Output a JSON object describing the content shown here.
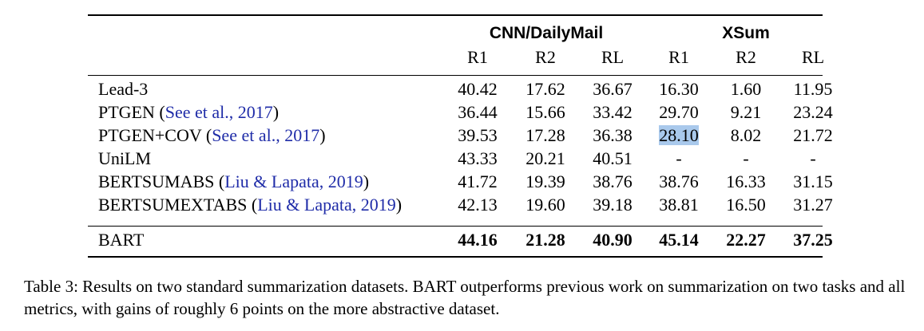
{
  "table": {
    "groups": [
      {
        "label": "CNN/DailyMail"
      },
      {
        "label": "XSum"
      }
    ],
    "metrics": [
      "R1",
      "R2",
      "RL",
      "R1",
      "R2",
      "RL"
    ],
    "rows": [
      {
        "model": "Lead-3",
        "citation": "",
        "suffix": "",
        "values": [
          "40.42",
          "17.62",
          "36.67",
          "16.30",
          "1.60",
          "11.95"
        ]
      },
      {
        "model": "PTGEN (",
        "citation": "See et al., 2017",
        "suffix": ")",
        "values": [
          "36.44",
          "15.66",
          "33.42",
          "29.70",
          "9.21",
          "23.24"
        ]
      },
      {
        "model": "PTGEN+COV (",
        "citation": "See et al., 2017",
        "suffix": ")",
        "values": [
          "39.53",
          "17.28",
          "36.38",
          "28.10",
          "8.02",
          "21.72"
        ]
      },
      {
        "model": "UniLM",
        "citation": "",
        "suffix": "",
        "values": [
          "43.33",
          "20.21",
          "40.51",
          "-",
          "-",
          "-"
        ]
      },
      {
        "model": "BERTSUMABS (",
        "citation": "Liu & Lapata, 2019",
        "suffix": ")",
        "values": [
          "41.72",
          "19.39",
          "38.76",
          "38.76",
          "16.33",
          "31.15"
        ]
      },
      {
        "model": "BERTSUMEXTABS (",
        "citation": "Liu & Lapata, 2019",
        "suffix": ")",
        "values": [
          "42.13",
          "19.60",
          "39.18",
          "38.81",
          "16.50",
          "31.27"
        ]
      }
    ],
    "final_row": {
      "model": "BART",
      "values": [
        "44.16",
        "21.28",
        "40.90",
        "45.14",
        "22.27",
        "37.25"
      ]
    }
  },
  "caption": "Table 3: Results on two standard summarization datasets. BART outperforms previous work on summarization on two tasks and all metrics, with gains of roughly 6 points on the more abstractive dataset.",
  "colors": {
    "citation": "#1f2ca8",
    "highlight": "#a9c9ec"
  }
}
